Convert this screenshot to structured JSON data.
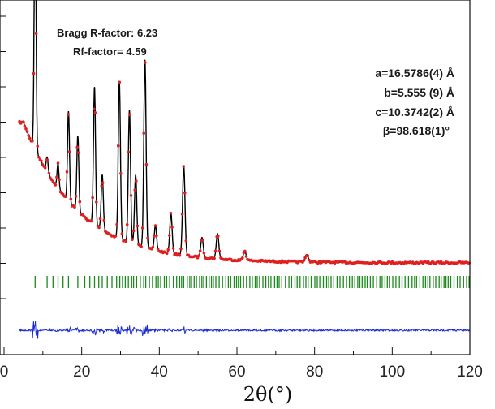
{
  "chart_data": {
    "type": "line",
    "xlabel": "2θ(°)",
    "ylabel": "",
    "xlim": [
      0,
      120
    ],
    "x_ticks": [
      "0",
      "20",
      "40",
      "60",
      "80",
      "100",
      "120"
    ],
    "y_ticks_labeled": false,
    "grid": false,
    "series": [
      {
        "role": "observed",
        "style": "red dots",
        "color": "#e02020"
      },
      {
        "role": "calculated",
        "style": "black line",
        "color": "#000000"
      },
      {
        "role": "bragg positions",
        "style": "green ticks",
        "color": "#1a8a1a"
      },
      {
        "role": "difference",
        "style": "blue line",
        "color": "#1a2bd0"
      }
    ],
    "peaks": [
      {
        "x": 8.0,
        "rel_intensity": 1.0
      },
      {
        "x": 11.1,
        "rel_intensity": 0.06
      },
      {
        "x": 13.9,
        "rel_intensity": 0.1
      },
      {
        "x": 16.6,
        "rel_intensity": 0.36
      },
      {
        "x": 19.0,
        "rel_intensity": 0.3
      },
      {
        "x": 23.3,
        "rel_intensity": 0.55
      },
      {
        "x": 25.3,
        "rel_intensity": 0.22
      },
      {
        "x": 29.7,
        "rel_intensity": 0.63
      },
      {
        "x": 32.3,
        "rel_intensity": 0.53
      },
      {
        "x": 33.9,
        "rel_intensity": 0.28
      },
      {
        "x": 36.3,
        "rel_intensity": 0.75
      },
      {
        "x": 39.0,
        "rel_intensity": 0.1
      },
      {
        "x": 43.0,
        "rel_intensity": 0.16
      },
      {
        "x": 46.3,
        "rel_intensity": 0.36
      },
      {
        "x": 51.0,
        "rel_intensity": 0.08
      },
      {
        "x": 55.0,
        "rel_intensity": 0.1
      },
      {
        "x": 62.0,
        "rel_intensity": 0.04
      },
      {
        "x": 78.0,
        "rel_intensity": 0.03
      }
    ],
    "background": {
      "start": 0.58,
      "end": 0.02
    }
  },
  "annotations": {
    "bragg_r": "Bragg R-factor:   6.23",
    "rf": "Rf-factor=  4.59",
    "cell_a": "a=16.5786(4) Å",
    "cell_b": "b=5.555 (9) Å",
    "cell_c": "c=10.3742(2) Å",
    "cell_beta": "β=98.618(1)°"
  }
}
